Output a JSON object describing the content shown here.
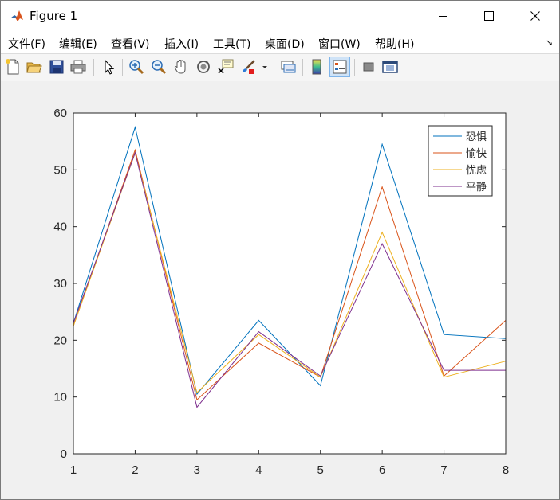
{
  "window": {
    "title": "Figure 1"
  },
  "menu": {
    "items": [
      {
        "label": "文件(F)"
      },
      {
        "label": "编辑(E)"
      },
      {
        "label": "查看(V)"
      },
      {
        "label": "插入(I)"
      },
      {
        "label": "工具(T)"
      },
      {
        "label": "桌面(D)"
      },
      {
        "label": "窗口(W)"
      },
      {
        "label": "帮助(H)"
      }
    ],
    "overflow_icon": "dock-arrow-icon"
  },
  "toolbar": {
    "buttons": [
      {
        "icon": "new-figure-icon"
      },
      {
        "icon": "open-file-icon"
      },
      {
        "icon": "save-icon"
      },
      {
        "icon": "print-icon"
      },
      {
        "icon": "select-arrow-icon"
      },
      {
        "icon": "zoom-in-icon"
      },
      {
        "icon": "zoom-out-icon"
      },
      {
        "icon": "pan-hand-icon"
      },
      {
        "icon": "rotate-3d-icon"
      },
      {
        "icon": "data-cursor-icon"
      },
      {
        "icon": "brush-icon"
      },
      {
        "icon": "link-plot-icon"
      },
      {
        "icon": "insert-colorbar-icon"
      },
      {
        "icon": "insert-legend-icon"
      },
      {
        "icon": "hide-plot-tools-icon"
      },
      {
        "icon": "show-plot-tools-icon"
      }
    ]
  },
  "chart_data": {
    "type": "line",
    "title": "",
    "xlabel": "",
    "ylabel": "",
    "x": [
      1,
      2,
      3,
      4,
      5,
      6,
      7,
      8
    ],
    "xlim": [
      1,
      8
    ],
    "ylim": [
      0,
      60
    ],
    "xticks": [
      1,
      2,
      3,
      4,
      5,
      6,
      7,
      8
    ],
    "yticks": [
      0,
      10,
      20,
      30,
      40,
      50,
      60
    ],
    "grid": false,
    "legend_position": "top-right",
    "series": [
      {
        "name": "恐惧",
        "color": "#0072BD",
        "values": [
          23.0,
          57.5,
          10.5,
          23.5,
          12.0,
          54.5,
          21.0,
          20.3
        ]
      },
      {
        "name": "愉快",
        "color": "#D95319",
        "values": [
          22.5,
          53.5,
          9.5,
          19.5,
          13.5,
          47.0,
          13.7,
          23.5
        ]
      },
      {
        "name": "忧虑",
        "color": "#EDB120",
        "values": [
          22.5,
          53.0,
          10.8,
          21.0,
          13.5,
          39.0,
          13.5,
          16.3
        ]
      },
      {
        "name": "平静",
        "color": "#7E2F8E",
        "values": [
          23.0,
          53.0,
          8.2,
          21.5,
          13.7,
          37.0,
          14.7,
          14.7
        ]
      }
    ]
  }
}
